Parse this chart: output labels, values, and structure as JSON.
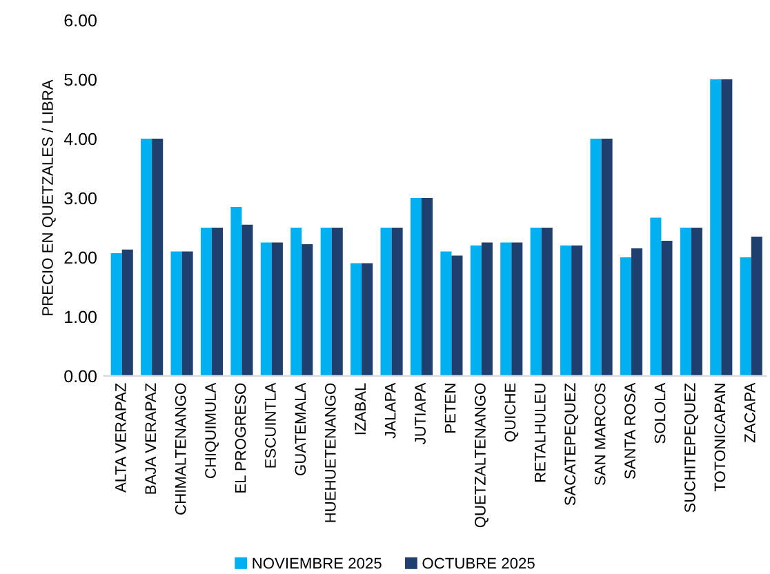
{
  "chart_data": {
    "type": "bar",
    "ylabel": "PRECIO EN QUETZALES / LIBRA",
    "categories": [
      "ALTA VERAPAZ",
      "BAJA VERAPAZ",
      "CHIMALTENANGO",
      "CHIQUIMULA",
      "EL PROGRESO",
      "ESCUINTLA",
      "GUATEMALA",
      "HUEHUETENANGO",
      "IZABAL",
      "JALAPA",
      "JUTIAPA",
      "PETEN",
      "QUETZALTENANGO",
      "QUICHE",
      "RETALHULEU",
      "SACATEPEQUEZ",
      "SAN MARCOS",
      "SANTA ROSA",
      "SOLOLA",
      "SUCHITEPEQUEZ",
      "TOTONICAPAN",
      "ZACAPA"
    ],
    "series": [
      {
        "name": "NOVIEMBRE 2025",
        "color": "#00b0f0",
        "values": [
          2.07,
          4.0,
          2.1,
          2.5,
          2.85,
          2.25,
          2.5,
          2.5,
          1.9,
          2.5,
          3.0,
          2.1,
          2.2,
          2.25,
          2.5,
          2.2,
          4.0,
          2.0,
          2.67,
          2.5,
          5.0,
          2.0
        ]
      },
      {
        "name": "OCTUBRE 2025",
        "color": "#1f3f6e",
        "values": [
          2.13,
          4.0,
          2.1,
          2.5,
          2.55,
          2.25,
          2.22,
          2.5,
          1.9,
          2.5,
          3.0,
          2.03,
          2.25,
          2.25,
          2.5,
          2.2,
          4.0,
          2.15,
          2.28,
          2.5,
          5.0,
          2.35
        ]
      }
    ],
    "ylim": [
      0,
      6
    ],
    "yticks": [
      {
        "value": 0,
        "label": "0.00"
      },
      {
        "value": 1,
        "label": "1.00"
      },
      {
        "value": 2,
        "label": "2.00"
      },
      {
        "value": 3,
        "label": "3.00"
      },
      {
        "value": 4,
        "label": "4.00"
      },
      {
        "value": 5,
        "label": "5.00"
      },
      {
        "value": 6,
        "label": "6.00"
      }
    ],
    "grid": false,
    "legend": "bottom"
  }
}
